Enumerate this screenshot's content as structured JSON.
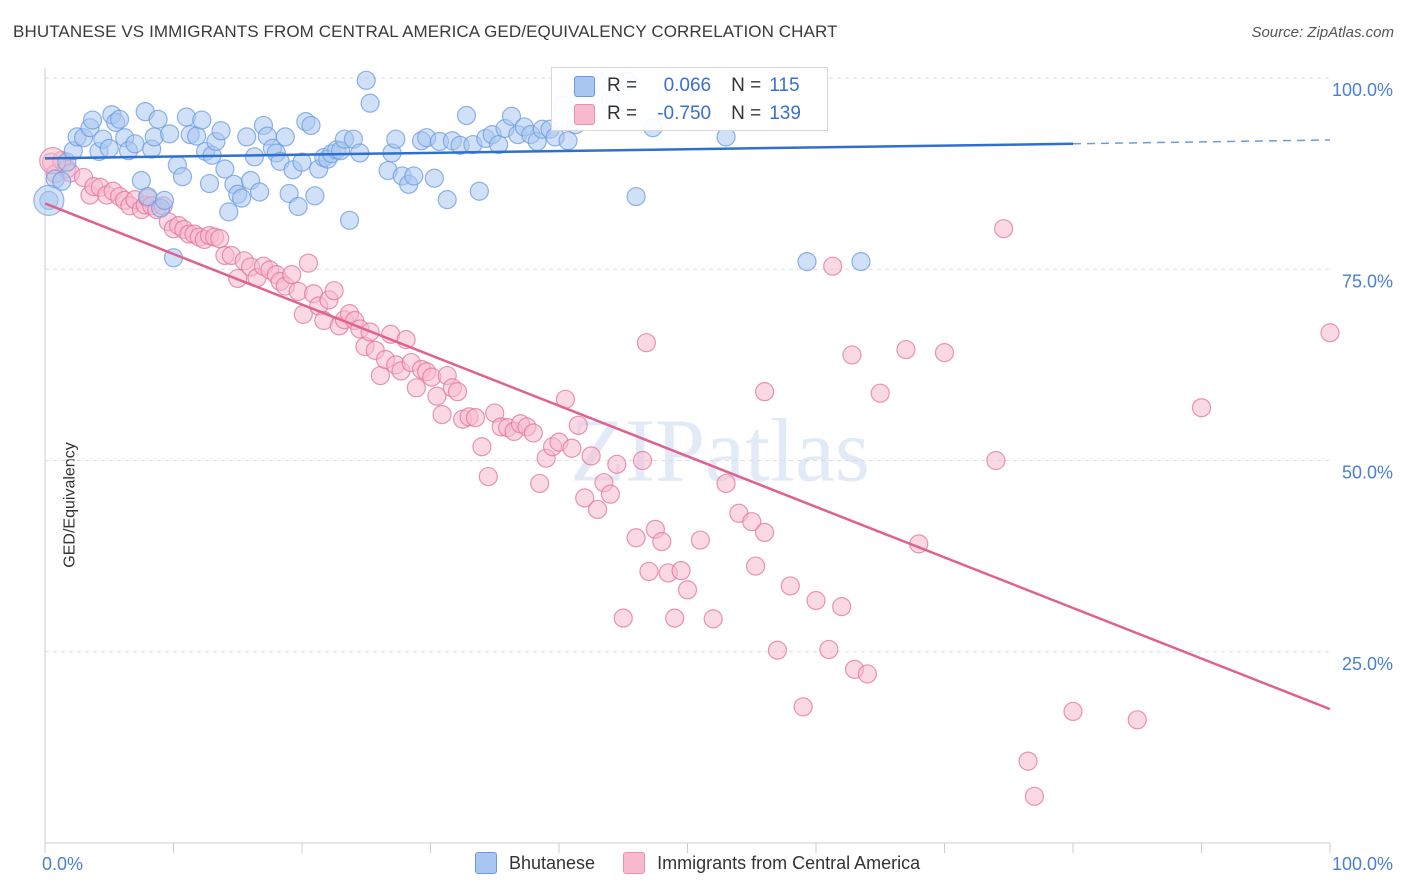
{
  "title": "BHUTANESE VS IMMIGRANTS FROM CENTRAL AMERICA GED/EQUIVALENCY CORRELATION CHART",
  "source": "Source: ZipAtlas.com",
  "watermark": "ZIPatlas",
  "legend": {
    "r_label": "R =",
    "n_label": "N =",
    "rows": [
      {
        "r": "0.066",
        "n": "115",
        "fill": "#a9c6f0",
        "stroke": "#6a9be0"
      },
      {
        "r": "-0.750",
        "n": "139",
        "fill": "#f7b9cd",
        "stroke": "#ea8fae"
      }
    ]
  },
  "bottom_legend": [
    {
      "label": "Bhutanese",
      "fill": "#a9c6f0",
      "stroke": "#6a9be0"
    },
    {
      "label": "Immigrants from Central America",
      "fill": "#f7b9cd",
      "stroke": "#ea8fae"
    }
  ],
  "chart_data": {
    "type": "scatter",
    "title": "BHUTANESE VS IMMIGRANTS FROM CENTRAL AMERICA GED/EQUIVALENCY CORRELATION CHART",
    "xlabel": "",
    "ylabel": "GED/Equivalency",
    "xlim": [
      0,
      100
    ],
    "ylim": [
      0,
      100
    ],
    "x_tick_labels": [
      "0.0%",
      "100.0%"
    ],
    "y_tick_values": [
      25,
      50,
      75,
      100
    ],
    "y_tick_labels": [
      "25.0%",
      "50.0%",
      "75.0%",
      "100.0%"
    ],
    "grid": true,
    "legend_position": "top-center",
    "series": [
      {
        "name": "Bhutanese",
        "color": "#6a9be0",
        "fill": "#a9c6f0",
        "trend": {
          "x": [
            0,
            80,
            100
          ],
          "y": [
            89.5,
            91.4,
            91.9
          ],
          "dashed_from": 80
        },
        "points": [
          [
            0.3,
            84
          ],
          [
            0.8,
            86.8
          ],
          [
            1.3,
            86.5
          ],
          [
            1.7,
            89
          ],
          [
            2.2,
            90.5
          ],
          [
            2.5,
            92.3
          ],
          [
            3,
            92.2
          ],
          [
            3.5,
            93.5
          ],
          [
            3.7,
            94.5
          ],
          [
            4.2,
            90.4
          ],
          [
            4.5,
            92
          ],
          [
            5,
            90.8
          ],
          [
            5.2,
            95.2
          ],
          [
            5.5,
            94.2
          ],
          [
            5.8,
            94.6
          ],
          [
            6.2,
            92.2
          ],
          [
            6.5,
            90.5
          ],
          [
            7,
            91.4
          ],
          [
            7.5,
            86.6
          ],
          [
            7.8,
            95.6
          ],
          [
            8,
            84.5
          ],
          [
            8.3,
            90.7
          ],
          [
            8.5,
            92.3
          ],
          [
            8.8,
            94.6
          ],
          [
            9,
            83
          ],
          [
            9.3,
            84
          ],
          [
            9.7,
            92.7
          ],
          [
            10,
            76.5
          ],
          [
            10.3,
            88.6
          ],
          [
            10.7,
            87.1
          ],
          [
            11,
            94.9
          ],
          [
            11.3,
            92.6
          ],
          [
            11.8,
            92.4
          ],
          [
            12.2,
            94.5
          ],
          [
            12.5,
            90.4
          ],
          [
            12.8,
            86.2
          ],
          [
            13,
            89.9
          ],
          [
            13.3,
            91.7
          ],
          [
            13.7,
            93.1
          ],
          [
            14,
            88.1
          ],
          [
            14.3,
            82.5
          ],
          [
            14.7,
            86.1
          ],
          [
            15,
            84.8
          ],
          [
            15.3,
            84.3
          ],
          [
            15.7,
            92.3
          ],
          [
            16,
            86.6
          ],
          [
            16.3,
            89.7
          ],
          [
            16.7,
            85.1
          ],
          [
            17,
            93.8
          ],
          [
            17.3,
            92.4
          ],
          [
            17.7,
            90.8
          ],
          [
            18,
            90.2
          ],
          [
            18.3,
            89.1
          ],
          [
            18.7,
            92.3
          ],
          [
            19,
            84.9
          ],
          [
            19.3,
            88
          ],
          [
            19.7,
            83.2
          ],
          [
            20,
            89
          ],
          [
            20.3,
            94.3
          ],
          [
            20.7,
            93.8
          ],
          [
            21,
            84.6
          ],
          [
            21.3,
            88.1
          ],
          [
            21.7,
            89.6
          ],
          [
            22,
            89.4
          ],
          [
            22.3,
            90.1
          ],
          [
            22.7,
            90.6
          ],
          [
            23,
            90.5
          ],
          [
            23.3,
            92
          ],
          [
            23.7,
            81.4
          ],
          [
            24,
            92
          ],
          [
            24.5,
            90.2
          ],
          [
            25,
            99.7
          ],
          [
            25.3,
            96.7
          ],
          [
            26.7,
            87.9
          ],
          [
            27,
            90.2
          ],
          [
            27.3,
            92
          ],
          [
            27.8,
            87.2
          ],
          [
            28.3,
            86.1
          ],
          [
            28.7,
            87.2
          ],
          [
            29.3,
            91.8
          ],
          [
            29.7,
            92.2
          ],
          [
            30.3,
            86.9
          ],
          [
            30.7,
            91.7
          ],
          [
            31.3,
            84.1
          ],
          [
            31.7,
            91.8
          ],
          [
            32.3,
            91.2
          ],
          [
            32.8,
            95.1
          ],
          [
            33.3,
            91.3
          ],
          [
            33.8,
            85.2
          ],
          [
            34.3,
            92.1
          ],
          [
            34.8,
            92.6
          ],
          [
            35.3,
            91.3
          ],
          [
            35.8,
            93.4
          ],
          [
            36.3,
            95
          ],
          [
            36.8,
            92.6
          ],
          [
            37.3,
            93.6
          ],
          [
            37.8,
            92.6
          ],
          [
            38.3,
            91.7
          ],
          [
            38.7,
            93.3
          ],
          [
            39.3,
            93.3
          ],
          [
            39.7,
            92.3
          ],
          [
            40.3,
            96.5
          ],
          [
            40.7,
            91.8
          ],
          [
            41.3,
            93.9
          ],
          [
            43,
            99.7
          ],
          [
            44,
            97
          ],
          [
            45.3,
            99.6
          ],
          [
            46,
            84.5
          ],
          [
            47.3,
            93.5
          ],
          [
            53,
            92.3
          ],
          [
            59.3,
            76
          ],
          [
            63.5,
            76
          ]
        ]
      },
      {
        "name": "Immigrants from Central America",
        "color": "#e2739b",
        "fill": "#f7b9cd",
        "trend": {
          "x": [
            0,
            100
          ],
          "y": [
            83.6,
            17.5
          ]
        },
        "points": [
          [
            0.5,
            89
          ],
          [
            0.8,
            87.5
          ],
          [
            1.3,
            89.2
          ],
          [
            1.7,
            88.1
          ],
          [
            2,
            87.6
          ],
          [
            3,
            87
          ],
          [
            3.5,
            84.7
          ],
          [
            3.8,
            85.8
          ],
          [
            4.3,
            85.7
          ],
          [
            4.8,
            84.7
          ],
          [
            5.3,
            85.2
          ],
          [
            5.8,
            84.5
          ],
          [
            6.2,
            84
          ],
          [
            6.6,
            83.3
          ],
          [
            7,
            84.1
          ],
          [
            7.5,
            82.8
          ],
          [
            7.8,
            83.4
          ],
          [
            8,
            84.3
          ],
          [
            8.3,
            83.3
          ],
          [
            8.7,
            82.8
          ],
          [
            9.2,
            83.3
          ],
          [
            9.6,
            81.2
          ],
          [
            10,
            80.3
          ],
          [
            10.4,
            80.7
          ],
          [
            10.8,
            80.2
          ],
          [
            11.2,
            79.6
          ],
          [
            11.6,
            79.6
          ],
          [
            12,
            79.2
          ],
          [
            12.4,
            78.9
          ],
          [
            12.8,
            79.4
          ],
          [
            13.2,
            79.2
          ],
          [
            13.6,
            79
          ],
          [
            14,
            76.8
          ],
          [
            14.5,
            76.8
          ],
          [
            15,
            73.8
          ],
          [
            15.5,
            76.1
          ],
          [
            16,
            75.3
          ],
          [
            16.5,
            73.9
          ],
          [
            17,
            75.4
          ],
          [
            17.5,
            74.9
          ],
          [
            18,
            74.3
          ],
          [
            18.3,
            73.4
          ],
          [
            18.7,
            72.8
          ],
          [
            19.2,
            74.3
          ],
          [
            19.7,
            72.1
          ],
          [
            20.1,
            69.1
          ],
          [
            20.5,
            75.8
          ],
          [
            20.9,
            71.8
          ],
          [
            21.3,
            70.2
          ],
          [
            21.7,
            68.3
          ],
          [
            22.1,
            71
          ],
          [
            22.5,
            72.2
          ],
          [
            22.9,
            67.6
          ],
          [
            23.3,
            68.4
          ],
          [
            23.7,
            69.2
          ],
          [
            24.1,
            68.3
          ],
          [
            24.5,
            67.2
          ],
          [
            24.9,
            64.9
          ],
          [
            25.3,
            66.8
          ],
          [
            25.7,
            64.4
          ],
          [
            26.1,
            61.1
          ],
          [
            26.5,
            63.2
          ],
          [
            26.9,
            66.5
          ],
          [
            27.3,
            62.5
          ],
          [
            27.7,
            61.7
          ],
          [
            28.1,
            65.8
          ],
          [
            28.5,
            62.8
          ],
          [
            28.9,
            59.5
          ],
          [
            29.3,
            61.9
          ],
          [
            29.7,
            61.6
          ],
          [
            30.1,
            60.9
          ],
          [
            30.5,
            58.4
          ],
          [
            30.9,
            56
          ],
          [
            31.3,
            61.1
          ],
          [
            31.7,
            59.5
          ],
          [
            32.1,
            59
          ],
          [
            32.5,
            55.4
          ],
          [
            33,
            55.7
          ],
          [
            33.5,
            55.6
          ],
          [
            34,
            51.8
          ],
          [
            34.5,
            47.9
          ],
          [
            35,
            56.2
          ],
          [
            35.5,
            54.4
          ],
          [
            36,
            54.3
          ],
          [
            36.5,
            53.8
          ],
          [
            37,
            54.8
          ],
          [
            37.5,
            54.4
          ],
          [
            38,
            53.6
          ],
          [
            38.5,
            47
          ],
          [
            39,
            50.3
          ],
          [
            39.5,
            51.8
          ],
          [
            40,
            52.4
          ],
          [
            40.5,
            58
          ],
          [
            41,
            51.6
          ],
          [
            41.5,
            54.6
          ],
          [
            42,
            45.1
          ],
          [
            42.5,
            50.6
          ],
          [
            43,
            43.6
          ],
          [
            43.5,
            47.1
          ],
          [
            44,
            45.6
          ],
          [
            44.5,
            49.5
          ],
          [
            45,
            29.4
          ],
          [
            46,
            39.9
          ],
          [
            46.5,
            50
          ],
          [
            47,
            35.5
          ],
          [
            47.5,
            41
          ],
          [
            48,
            39.4
          ],
          [
            48.5,
            35.3
          ],
          [
            49,
            29.4
          ],
          [
            49.5,
            35.6
          ],
          [
            50,
            33.1
          ],
          [
            51,
            39.6
          ],
          [
            52,
            29.3
          ],
          [
            53,
            47
          ],
          [
            54,
            43.1
          ],
          [
            55,
            42
          ],
          [
            55.3,
            36.2
          ],
          [
            56,
            40.6
          ],
          [
            57,
            25.2
          ],
          [
            58,
            33.6
          ],
          [
            59,
            17.8
          ],
          [
            60,
            31.7
          ],
          [
            61,
            25.3
          ],
          [
            62,
            30.9
          ],
          [
            63,
            22.7
          ],
          [
            64,
            22.1
          ],
          [
            65,
            58.8
          ],
          [
            67,
            64.5
          ],
          [
            68,
            39.1
          ],
          [
            70,
            64.1
          ],
          [
            74,
            50
          ],
          [
            76.5,
            10.7
          ],
          [
            77,
            6.1
          ],
          [
            80,
            17.2
          ],
          [
            85,
            16.1
          ],
          [
            90,
            56.9
          ],
          [
            100,
            66.7
          ],
          [
            46.8,
            65.4
          ],
          [
            56,
            59
          ],
          [
            61.3,
            75.4
          ],
          [
            62.8,
            63.8
          ],
          [
            74.6,
            80.3
          ]
        ]
      }
    ]
  }
}
